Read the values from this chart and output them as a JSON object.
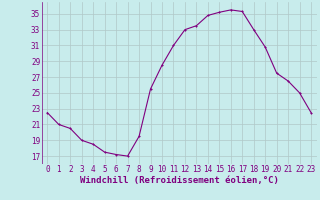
{
  "x": [
    0,
    1,
    2,
    3,
    4,
    5,
    6,
    7,
    8,
    9,
    10,
    11,
    12,
    13,
    14,
    15,
    16,
    17,
    18,
    19,
    20,
    21,
    22,
    23
  ],
  "y": [
    22.5,
    21.0,
    20.5,
    19.0,
    18.5,
    17.5,
    17.2,
    17.0,
    19.5,
    25.5,
    28.5,
    31.0,
    33.0,
    33.5,
    34.8,
    35.2,
    35.5,
    35.3,
    33.0,
    30.8,
    27.5,
    26.5,
    25.0,
    22.5
  ],
  "line_color": "#800080",
  "marker_color": "#800080",
  "bg_color": "#c8ecec",
  "grid_color": "#b0c8c8",
  "xlabel": "Windchill (Refroidissement éolien,°C)",
  "xlabel_color": "#800080",
  "ylim": [
    16.0,
    36.5
  ],
  "yticks": [
    17,
    19,
    21,
    23,
    25,
    27,
    29,
    31,
    33,
    35
  ],
  "xticks": [
    0,
    1,
    2,
    3,
    4,
    5,
    6,
    7,
    8,
    9,
    10,
    11,
    12,
    13,
    14,
    15,
    16,
    17,
    18,
    19,
    20,
    21,
    22,
    23
  ],
  "tick_color": "#800080",
  "tick_fontsize": 5.5,
  "xlabel_fontsize": 6.5,
  "linewidth": 0.8,
  "markersize": 2.0
}
